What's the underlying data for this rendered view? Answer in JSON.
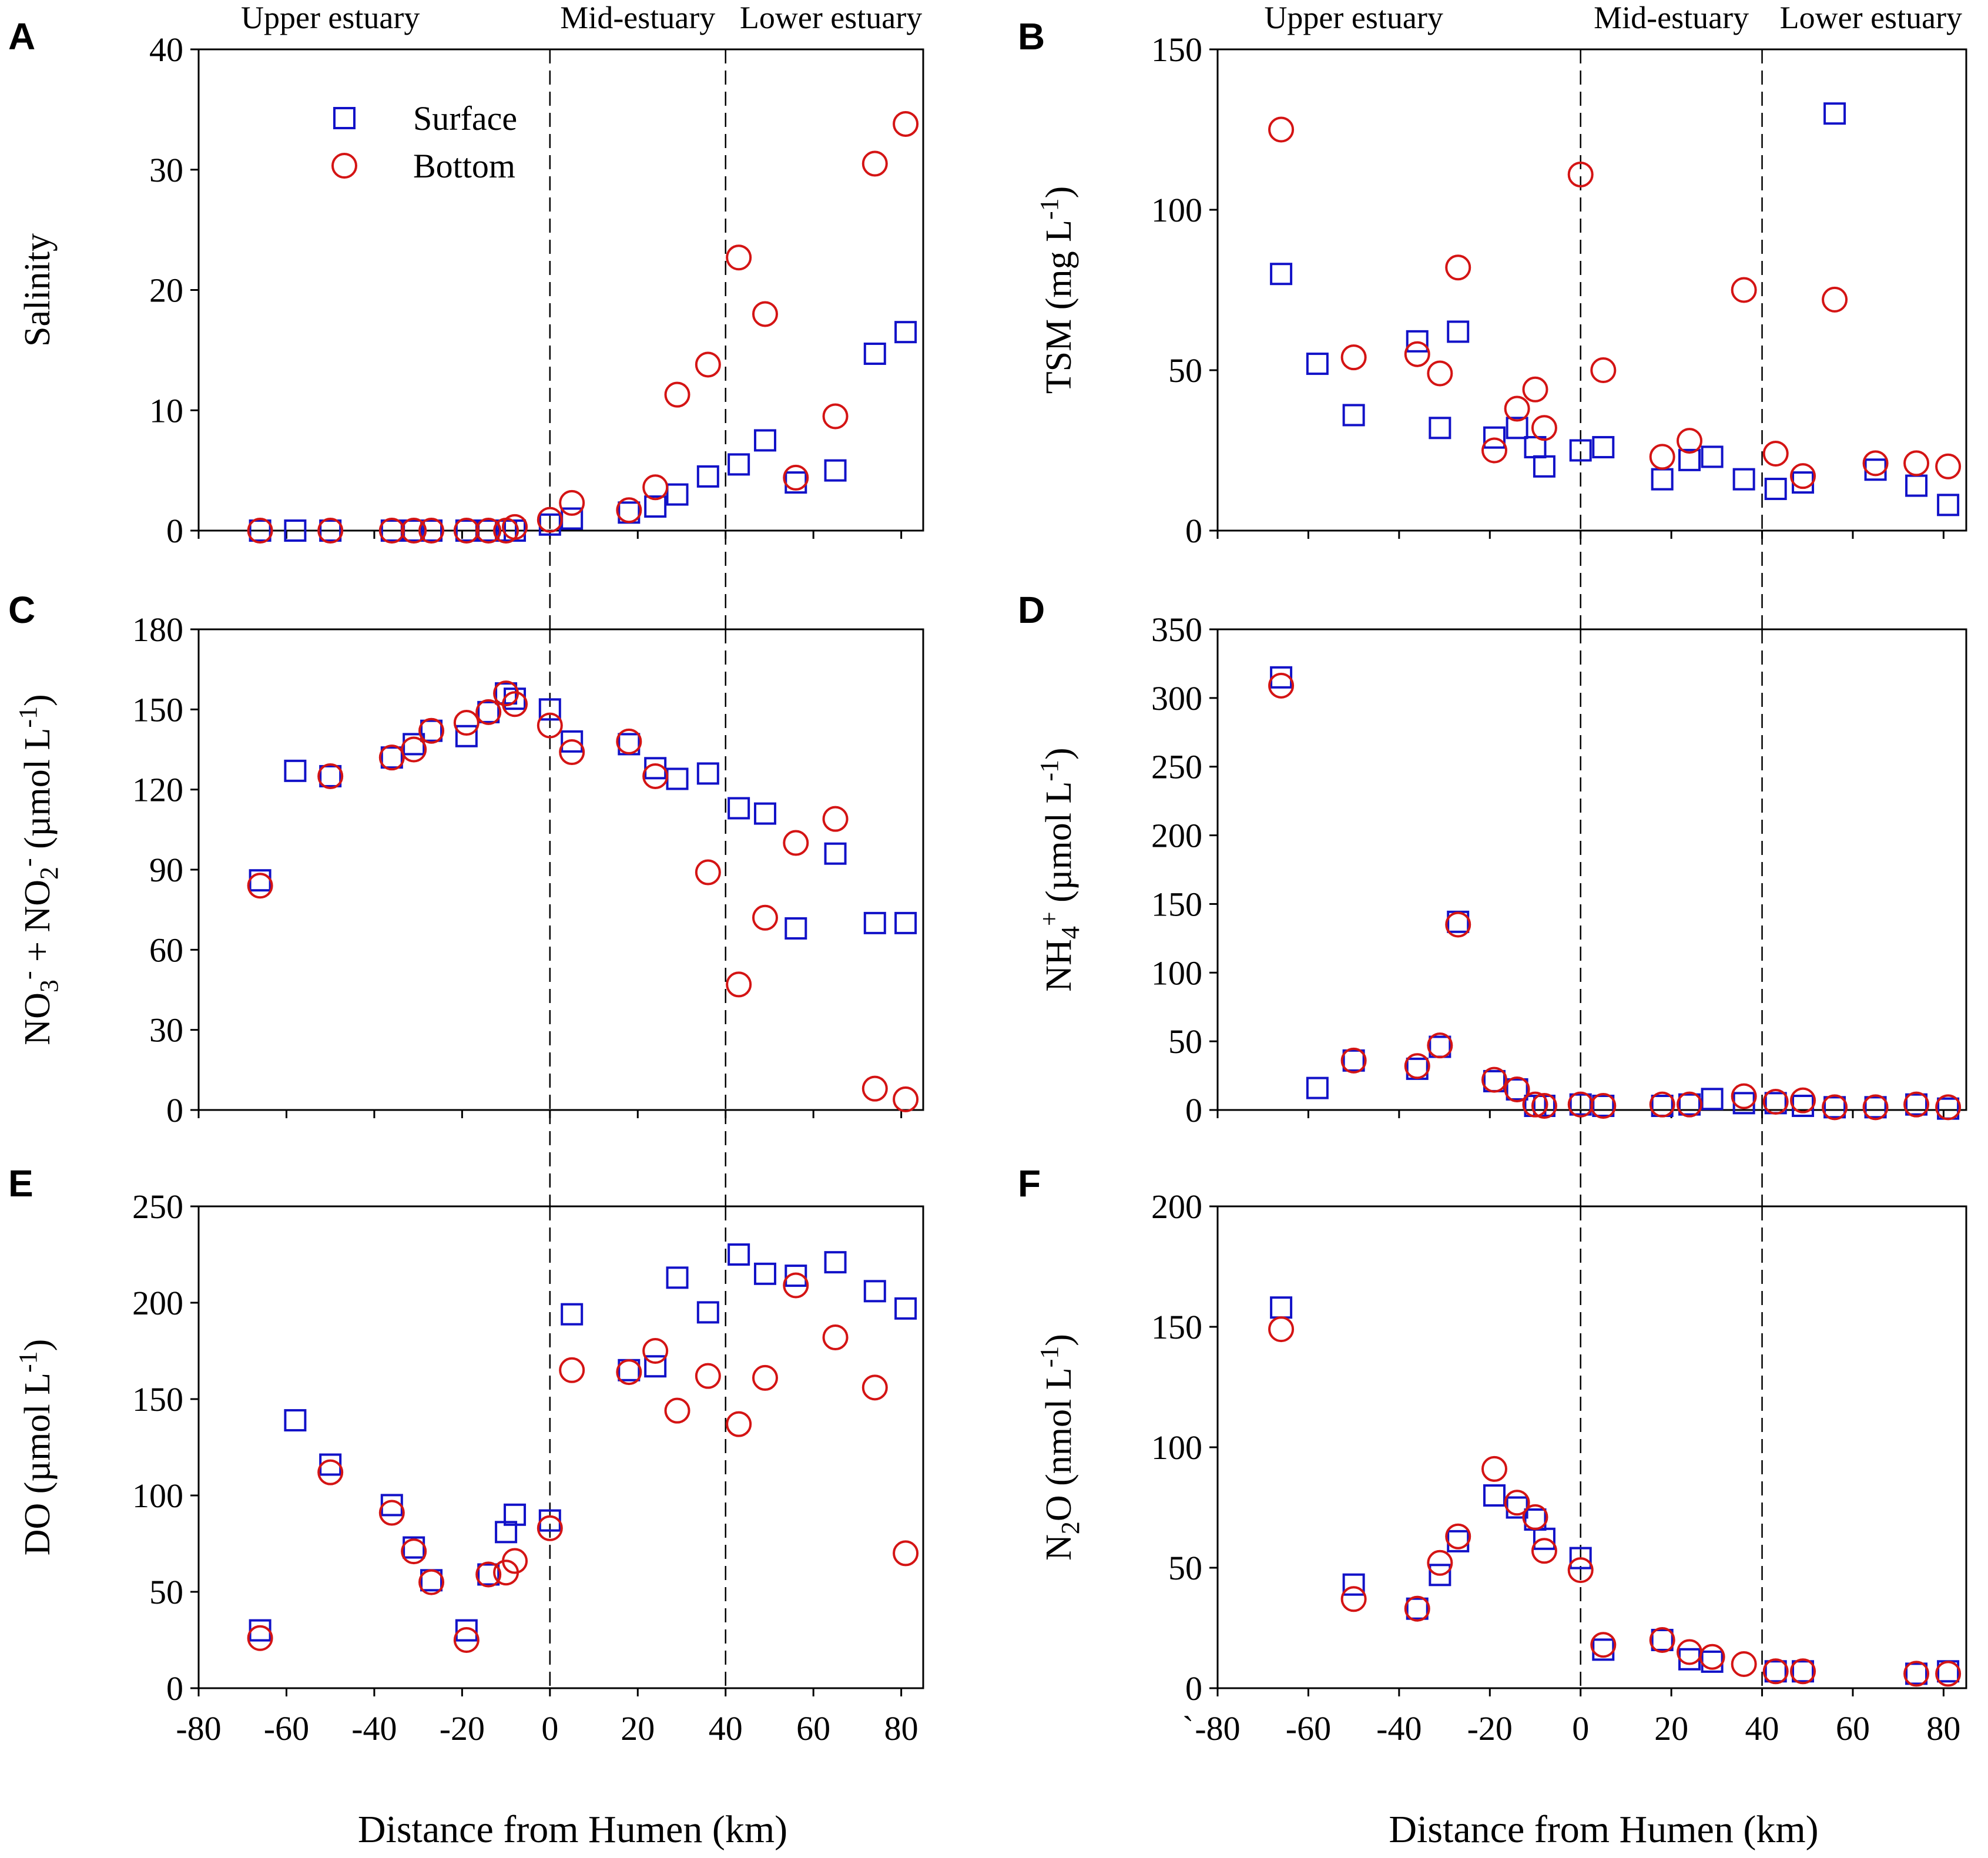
{
  "figure": {
    "region_labels": [
      "Upper estuary",
      "Mid-estuary",
      "Lower estuary"
    ],
    "x_axis_label": "Distance from Humen (km)",
    "stray_tick_mark": "`",
    "legend": {
      "surface": "Surface",
      "bottom": "Bottom"
    },
    "colors": {
      "surface": "#1212c8",
      "bottom": "#d41414",
      "axis": "#000000",
      "divider": "#000000"
    },
    "divider_positions_km": [
      0,
      40
    ]
  },
  "chart_data": [
    {
      "id": "A",
      "type": "scatter",
      "title": "A",
      "ylabel": "Salinity",
      "ylabel_parts": [
        {
          "t": "Salinity",
          "s": ""
        }
      ],
      "xlabel": "Distance from Humen (km)",
      "xlim": [
        -80,
        85
      ],
      "ylim": [
        0,
        40
      ],
      "xticks": [
        -80,
        -60,
        -40,
        -20,
        0,
        20,
        40,
        60,
        80
      ],
      "yticks": [
        0,
        10,
        20,
        30,
        40
      ],
      "legend_position": "upper-left",
      "series": [
        {
          "name": "Surface",
          "marker": "square",
          "x": [
            -66,
            -58,
            -50,
            -36,
            -31,
            -27,
            -19,
            -14,
            -10,
            -8,
            0,
            5,
            18,
            24,
            29,
            36,
            43,
            49,
            56,
            65,
            74,
            81
          ],
          "y": [
            0,
            0,
            0,
            0,
            0,
            0,
            0,
            0,
            0,
            0,
            0.5,
            1,
            1.5,
            2,
            3,
            4.5,
            5.5,
            7.5,
            4,
            5,
            14.7,
            16.5
          ]
        },
        {
          "name": "Bottom",
          "marker": "circle",
          "x": [
            -66,
            -50,
            -36,
            -31,
            -27,
            -19,
            -14,
            -10,
            -8,
            0,
            5,
            18,
            24,
            29,
            36,
            43,
            49,
            56,
            65,
            74,
            81
          ],
          "y": [
            0,
            0,
            0,
            0,
            0,
            0,
            0,
            0,
            0.3,
            0.9,
            2.3,
            1.7,
            3.6,
            11.3,
            13.8,
            22.7,
            18,
            4.4,
            9.5,
            30.5,
            33.8
          ]
        }
      ]
    },
    {
      "id": "B",
      "type": "scatter",
      "title": "B",
      "ylabel": "TSM (mg L-1)",
      "ylabel_parts": [
        {
          "t": "TSM (mg L",
          "s": ""
        },
        {
          "t": "-1",
          "s": "sup"
        },
        {
          "t": ")",
          "s": ""
        }
      ],
      "xlabel": "Distance from Humen (km)",
      "xlim": [
        -80,
        85
      ],
      "ylim": [
        0,
        150
      ],
      "xticks": [
        -80,
        -60,
        -40,
        -20,
        0,
        20,
        40,
        60,
        80
      ],
      "yticks": [
        0,
        50,
        100,
        150
      ],
      "series": [
        {
          "name": "Surface",
          "marker": "square",
          "x": [
            -66,
            -58,
            -50,
            -36,
            -31,
            -27,
            -19,
            -14,
            -10,
            -8,
            0,
            5,
            18,
            24,
            29,
            36,
            43,
            49,
            56,
            65,
            74,
            81
          ],
          "y": [
            80,
            52,
            36,
            59,
            32,
            62,
            29,
            32,
            26,
            20,
            25,
            26,
            16,
            22,
            23,
            16,
            13,
            15,
            130,
            19,
            14,
            8
          ]
        },
        {
          "name": "Bottom",
          "marker": "circle",
          "x": [
            -66,
            -50,
            -36,
            -31,
            -27,
            -19,
            -14,
            -10,
            -8,
            0,
            5,
            18,
            24,
            36,
            43,
            49,
            56,
            65,
            74,
            81
          ],
          "y": [
            125,
            54,
            55,
            49,
            82,
            25,
            38,
            44,
            32,
            111,
            50,
            23,
            28,
            75,
            24,
            17,
            72,
            21,
            21,
            20
          ]
        }
      ]
    },
    {
      "id": "C",
      "type": "scatter",
      "title": "C",
      "ylabel": "NO3- + NO2- (µmol L-1)",
      "ylabel_parts": [
        {
          "t": "NO",
          "s": ""
        },
        {
          "t": "3",
          "s": "sub"
        },
        {
          "t": "-",
          "s": "sup"
        },
        {
          "t": " + NO",
          "s": ""
        },
        {
          "t": "2",
          "s": "sub"
        },
        {
          "t": "-",
          "s": "sup"
        },
        {
          "t": " (µmol L",
          "s": ""
        },
        {
          "t": "-1",
          "s": "sup"
        },
        {
          "t": ")",
          "s": ""
        }
      ],
      "xlabel": "Distance from Humen (km)",
      "xlim": [
        -80,
        85
      ],
      "ylim": [
        0,
        180
      ],
      "xticks": [
        -80,
        -60,
        -40,
        -20,
        0,
        20,
        40,
        60,
        80
      ],
      "yticks": [
        0,
        30,
        60,
        90,
        120,
        150,
        180
      ],
      "series": [
        {
          "name": "Surface",
          "marker": "square",
          "x": [
            -66,
            -58,
            -50,
            -36,
            -31,
            -27,
            -19,
            -14,
            -10,
            -8,
            0,
            5,
            18,
            24,
            29,
            36,
            43,
            49,
            56,
            65,
            74,
            81
          ],
          "y": [
            86,
            127,
            125,
            132,
            137,
            142,
            140,
            149,
            156,
            154,
            150,
            138,
            137,
            128,
            124,
            126,
            113,
            111,
            68,
            96,
            70,
            70
          ]
        },
        {
          "name": "Bottom",
          "marker": "circle",
          "x": [
            -66,
            -50,
            -36,
            -31,
            -27,
            -19,
            -14,
            -10,
            -8,
            0,
            5,
            18,
            24,
            36,
            43,
            49,
            56,
            65,
            74,
            81
          ],
          "y": [
            84,
            125,
            132,
            135,
            142,
            145,
            149,
            156,
            152,
            144,
            134,
            138,
            125,
            89,
            47,
            72,
            100,
            109,
            8,
            4
          ]
        }
      ]
    },
    {
      "id": "D",
      "type": "scatter",
      "title": "D",
      "ylabel": "NH4+ (µmol L-1)",
      "ylabel_parts": [
        {
          "t": "NH",
          "s": ""
        },
        {
          "t": "4",
          "s": "sub"
        },
        {
          "t": "+",
          "s": "sup"
        },
        {
          "t": " (µmol L",
          "s": ""
        },
        {
          "t": "-1",
          "s": "sup"
        },
        {
          "t": ")",
          "s": ""
        }
      ],
      "xlabel": "Distance from Humen (km)",
      "xlim": [
        -80,
        85
      ],
      "ylim": [
        0,
        350
      ],
      "xticks": [
        -80,
        -60,
        -40,
        -20,
        0,
        20,
        40,
        60,
        80
      ],
      "yticks": [
        0,
        50,
        100,
        150,
        200,
        250,
        300,
        350
      ],
      "series": [
        {
          "name": "Surface",
          "marker": "square",
          "x": [
            -66,
            -58,
            -50,
            -36,
            -31,
            -27,
            -19,
            -14,
            -10,
            -8,
            0,
            5,
            18,
            24,
            29,
            36,
            43,
            49,
            56,
            65,
            74,
            81
          ],
          "y": [
            315,
            16,
            36,
            30,
            46,
            137,
            21,
            15,
            3,
            3,
            4,
            3,
            3,
            4,
            8,
            5,
            5,
            3,
            2,
            2,
            4,
            1
          ]
        },
        {
          "name": "Bottom",
          "marker": "circle",
          "x": [
            -66,
            -50,
            -36,
            -31,
            -27,
            -19,
            -14,
            -10,
            -8,
            0,
            5,
            18,
            24,
            36,
            43,
            49,
            56,
            65,
            74,
            81
          ],
          "y": [
            309,
            36,
            32,
            47,
            135,
            22,
            15,
            4,
            3,
            4,
            3,
            4,
            4,
            10,
            6,
            7,
            2,
            2,
            4,
            2
          ]
        }
      ]
    },
    {
      "id": "E",
      "type": "scatter",
      "title": "E",
      "ylabel": "DO (µmol L-1)",
      "ylabel_parts": [
        {
          "t": "DO (µmol L",
          "s": ""
        },
        {
          "t": "-1",
          "s": "sup"
        },
        {
          "t": ")",
          "s": ""
        }
      ],
      "xlabel": "Distance from Humen (km)",
      "xlim": [
        -80,
        85
      ],
      "ylim": [
        0,
        250
      ],
      "xticks": [
        -80,
        -60,
        -40,
        -20,
        0,
        20,
        40,
        60,
        80
      ],
      "yticks": [
        0,
        50,
        100,
        150,
        200,
        250
      ],
      "series": [
        {
          "name": "Surface",
          "marker": "square",
          "x": [
            -66,
            -58,
            -50,
            -36,
            -31,
            -27,
            -19,
            -14,
            -10,
            -8,
            0,
            5,
            18,
            24,
            29,
            36,
            43,
            49,
            56,
            65,
            74,
            81
          ],
          "y": [
            30,
            139,
            116,
            95,
            73,
            56,
            30,
            59,
            81,
            90,
            87,
            194,
            165,
            167,
            213,
            195,
            225,
            215,
            214,
            221,
            206,
            197
          ]
        },
        {
          "name": "Bottom",
          "marker": "circle",
          "x": [
            -66,
            -50,
            -36,
            -31,
            -27,
            -19,
            -14,
            -10,
            -8,
            0,
            5,
            18,
            24,
            29,
            36,
            43,
            49,
            56,
            65,
            74,
            81
          ],
          "y": [
            26,
            112,
            91,
            71,
            55,
            25,
            59,
            60,
            66,
            83,
            165,
            164,
            175,
            144,
            162,
            137,
            161,
            209,
            182,
            156,
            70
          ]
        }
      ]
    },
    {
      "id": "F",
      "type": "scatter",
      "title": "F",
      "ylabel": "N2O (nmol L-1)",
      "ylabel_parts": [
        {
          "t": "N",
          "s": ""
        },
        {
          "t": "2",
          "s": "sub"
        },
        {
          "t": "O (nmol L",
          "s": ""
        },
        {
          "t": "-1",
          "s": "sup"
        },
        {
          "t": ")",
          "s": ""
        }
      ],
      "xlabel": "Distance from Humen (km)",
      "xlim": [
        -80,
        85
      ],
      "ylim": [
        0,
        200
      ],
      "xticks": [
        -80,
        -60,
        -40,
        -20,
        0,
        20,
        40,
        60,
        80
      ],
      "yticks": [
        0,
        50,
        100,
        150,
        200
      ],
      "series": [
        {
          "name": "Surface",
          "marker": "square",
          "x": [
            -66,
            -50,
            -36,
            -31,
            -27,
            -19,
            -14,
            -10,
            -8,
            0,
            5,
            18,
            24,
            29,
            43,
            49,
            74,
            81
          ],
          "y": [
            158,
            43,
            33,
            47,
            61,
            80,
            75,
            70,
            62,
            54,
            16,
            20,
            12,
            11,
            7,
            7,
            6,
            7
          ]
        },
        {
          "name": "Bottom",
          "marker": "circle",
          "x": [
            -66,
            -50,
            -36,
            -31,
            -27,
            -19,
            -14,
            -10,
            -8,
            0,
            5,
            18,
            24,
            29,
            36,
            43,
            49,
            74,
            81
          ],
          "y": [
            149,
            37,
            33,
            52,
            63,
            91,
            77,
            71,
            57,
            49,
            18,
            20,
            15,
            13,
            10,
            7,
            7,
            6,
            6
          ]
        }
      ]
    }
  ]
}
